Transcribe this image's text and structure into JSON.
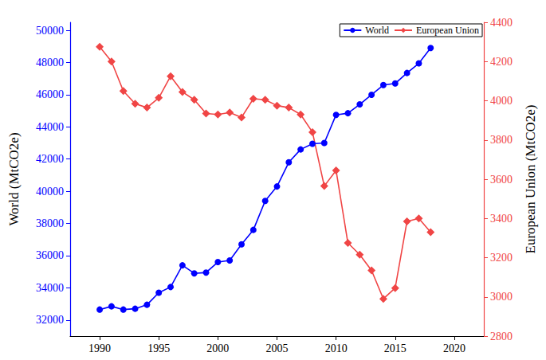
{
  "chart_data": {
    "type": "line",
    "x": [
      1990,
      1991,
      1992,
      1993,
      1994,
      1995,
      1996,
      1997,
      1998,
      1999,
      2000,
      2001,
      2002,
      2003,
      2004,
      2005,
      2006,
      2007,
      2008,
      2009,
      2010,
      2011,
      2012,
      2013,
      2014,
      2015,
      2016,
      2017,
      2018
    ],
    "xlim": [
      1987.5,
      2022.5
    ],
    "xticks": [
      1990,
      1995,
      2000,
      2005,
      2010,
      2015,
      2020
    ],
    "y_label": "World (MtCO2e)",
    "y2_label": "European Union (MtCO2e)",
    "ylim": [
      31000,
      50500
    ],
    "yticks": [
      32000,
      34000,
      36000,
      38000,
      40000,
      42000,
      44000,
      46000,
      48000,
      50000
    ],
    "y2lim": [
      2800,
      4400
    ],
    "y2ticks": [
      2800,
      3000,
      3200,
      3400,
      3600,
      3800,
      4000,
      4200,
      4400
    ],
    "grid": false,
    "legend": "upper right",
    "series": [
      {
        "name": "World",
        "color": "#0000ff",
        "marker": "circle",
        "axis": "y",
        "values": [
          32650,
          32850,
          32650,
          32700,
          32950,
          33700,
          34050,
          35400,
          34900,
          34950,
          35600,
          35700,
          36700,
          37600,
          39400,
          40300,
          41800,
          42600,
          42950,
          43000,
          44750,
          44850,
          45400,
          46000,
          46600,
          46700,
          47350,
          47950,
          48900
        ]
      },
      {
        "name": "European Union",
        "color": "#f04545",
        "marker": "diamond",
        "axis": "y2",
        "values": [
          4275,
          4200,
          4050,
          3985,
          3965,
          4015,
          4125,
          4045,
          4005,
          3935,
          3930,
          3940,
          3915,
          4010,
          4005,
          3975,
          3965,
          3930,
          3840,
          3565,
          3645,
          3275,
          3215,
          3135,
          2990,
          3045,
          3385,
          3400,
          3330
        ]
      }
    ]
  }
}
